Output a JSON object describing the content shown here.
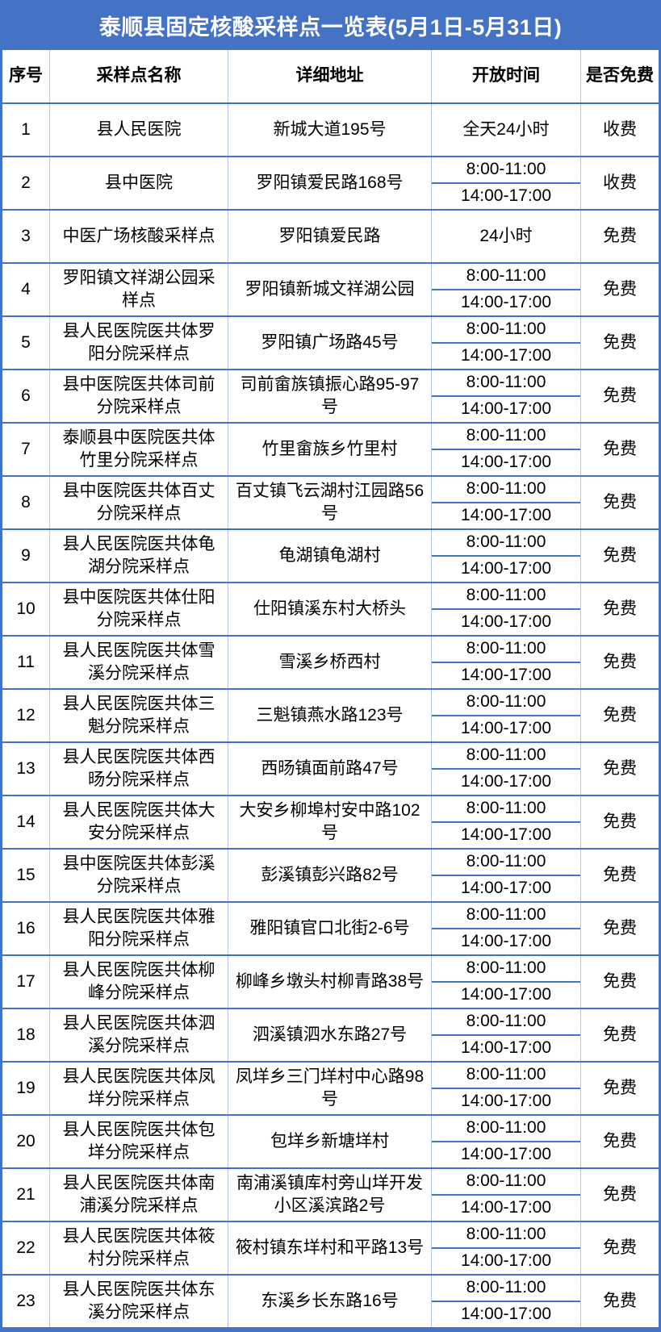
{
  "title": "泰顺县固定核酸采样点一览表(5月1日-5月31日)",
  "columns": [
    "序号",
    "采样点名称",
    "详细地址",
    "开放时间",
    "是否免费"
  ],
  "colors": {
    "accent_blue": "#4472C4",
    "cell_divider_blue": "#b4c6e7",
    "header_text": "#000000",
    "title_text": "#ffffff"
  },
  "rows": [
    {
      "no": "1",
      "name": "县人民医院",
      "address": "新城大道195号",
      "times": [
        "全天24小时"
      ],
      "fee": "收费"
    },
    {
      "no": "2",
      "name": "县中医院",
      "address": "罗阳镇爱民路168号",
      "times": [
        "8:00-11:00",
        "14:00-17:00"
      ],
      "fee": "收费"
    },
    {
      "no": "3",
      "name": "中医广场核酸采样点",
      "address": "罗阳镇爱民路",
      "times": [
        "24小时"
      ],
      "fee": "免费"
    },
    {
      "no": "4",
      "name": "罗阳镇文祥湖公园采样点",
      "address": "罗阳镇新城文祥湖公园",
      "times": [
        "8:00-11:00",
        "14:00-17:00"
      ],
      "fee": "免费"
    },
    {
      "no": "5",
      "name": "县人民医院医共体罗阳分院采样点",
      "address": "罗阳镇广场路45号",
      "times": [
        "8:00-11:00",
        "14:00-17:00"
      ],
      "fee": "免费"
    },
    {
      "no": "6",
      "name": "县中医院医共体司前分院采样点",
      "address": "司前畲族镇振心路95-97号",
      "times": [
        "8:00-11:00",
        "14:00-17:00"
      ],
      "fee": "免费"
    },
    {
      "no": "7",
      "name": "泰顺县中医院医共体竹里分院采样点",
      "address": "竹里畲族乡竹里村",
      "times": [
        "8:00-11:00",
        "14:00-17:00"
      ],
      "fee": "免费"
    },
    {
      "no": "8",
      "name": "县中医院医共体百丈分院采样点",
      "address": "百丈镇飞云湖村江园路56号",
      "times": [
        "8:00-11:00",
        "14:00-17:00"
      ],
      "fee": "免费"
    },
    {
      "no": "9",
      "name": "县人民医院医共体龟湖分院采样点",
      "address": "龟湖镇龟湖村",
      "times": [
        "8:00-11:00",
        "14:00-17:00"
      ],
      "fee": "免费"
    },
    {
      "no": "10",
      "name": "县中医院医共体仕阳分院采样点",
      "address": "仕阳镇溪东村大桥头",
      "times": [
        "8:00-11:00",
        "14:00-17:00"
      ],
      "fee": "免费"
    },
    {
      "no": "11",
      "name": "县人民医院医共体雪溪分院采样点",
      "address": "雪溪乡桥西村",
      "times": [
        "8:00-11:00",
        "14:00-17:00"
      ],
      "fee": "免费"
    },
    {
      "no": "12",
      "name": "县人民医院医共体三魁分院采样点",
      "address": "三魁镇燕水路123号",
      "times": [
        "8:00-11:00",
        "14:00-17:00"
      ],
      "fee": "免费"
    },
    {
      "no": "13",
      "name": "县人民医院医共体西旸分院采样点",
      "address": "西旸镇面前路47号",
      "times": [
        "8:00-11:00",
        "14:00-17:00"
      ],
      "fee": "免费"
    },
    {
      "no": "14",
      "name": "县人民医院医共体大安分院采样点",
      "address": "大安乡柳埠村安中路102号",
      "times": [
        "8:00-11:00",
        "14:00-17:00"
      ],
      "fee": "免费"
    },
    {
      "no": "15",
      "name": "县中医院医共体彭溪分院采样点",
      "address": "彭溪镇彭兴路82号",
      "times": [
        "8:00-11:00",
        "14:00-17:00"
      ],
      "fee": "免费"
    },
    {
      "no": "16",
      "name": "县人民医院医共体雅阳分院采样点",
      "address": "雅阳镇官口北街2-6号",
      "times": [
        "8:00-11:00",
        "14:00-17:00"
      ],
      "fee": "免费"
    },
    {
      "no": "17",
      "name": "县人民医院医共体柳峰分院采样点",
      "address": "柳峰乡墩头村柳青路38号",
      "times": [
        "8:00-11:00",
        "14:00-17:00"
      ],
      "fee": "免费"
    },
    {
      "no": "18",
      "name": "县人民医院医共体泗溪分院采样点",
      "address": "泗溪镇泗水东路27号",
      "times": [
        "8:00-11:00",
        "14:00-17:00"
      ],
      "fee": "免费"
    },
    {
      "no": "19",
      "name": "县人民医院医共体凤垟分院采样点",
      "address": "凤垟乡三门垟村中心路98号",
      "times": [
        "8:00-11:00",
        "14:00-17:00"
      ],
      "fee": "免费"
    },
    {
      "no": "20",
      "name": "县人民医院医共体包垟分院采样点",
      "address": "包垟乡新塘垟村",
      "times": [
        "8:00-11:00",
        "14:00-17:00"
      ],
      "fee": "免费"
    },
    {
      "no": "21",
      "name": "县人民医院医共体南浦溪分院采样点",
      "address": "南浦溪镇库村旁山垟开发小区溪滨路2号",
      "times": [
        "8:00-11:00",
        "14:00-17:00"
      ],
      "fee": "免费"
    },
    {
      "no": "22",
      "name": "县人民医院医共体筱村分院采样点",
      "address": "筱村镇东垟村和平路13号",
      "times": [
        "8:00-11:00",
        "14:00-17:00"
      ],
      "fee": "免费"
    },
    {
      "no": "23",
      "name": "县人民医院医共体东溪分院采样点",
      "address": "东溪乡长东路16号",
      "times": [
        "8:00-11:00",
        "14:00-17:00"
      ],
      "fee": "免费"
    }
  ]
}
